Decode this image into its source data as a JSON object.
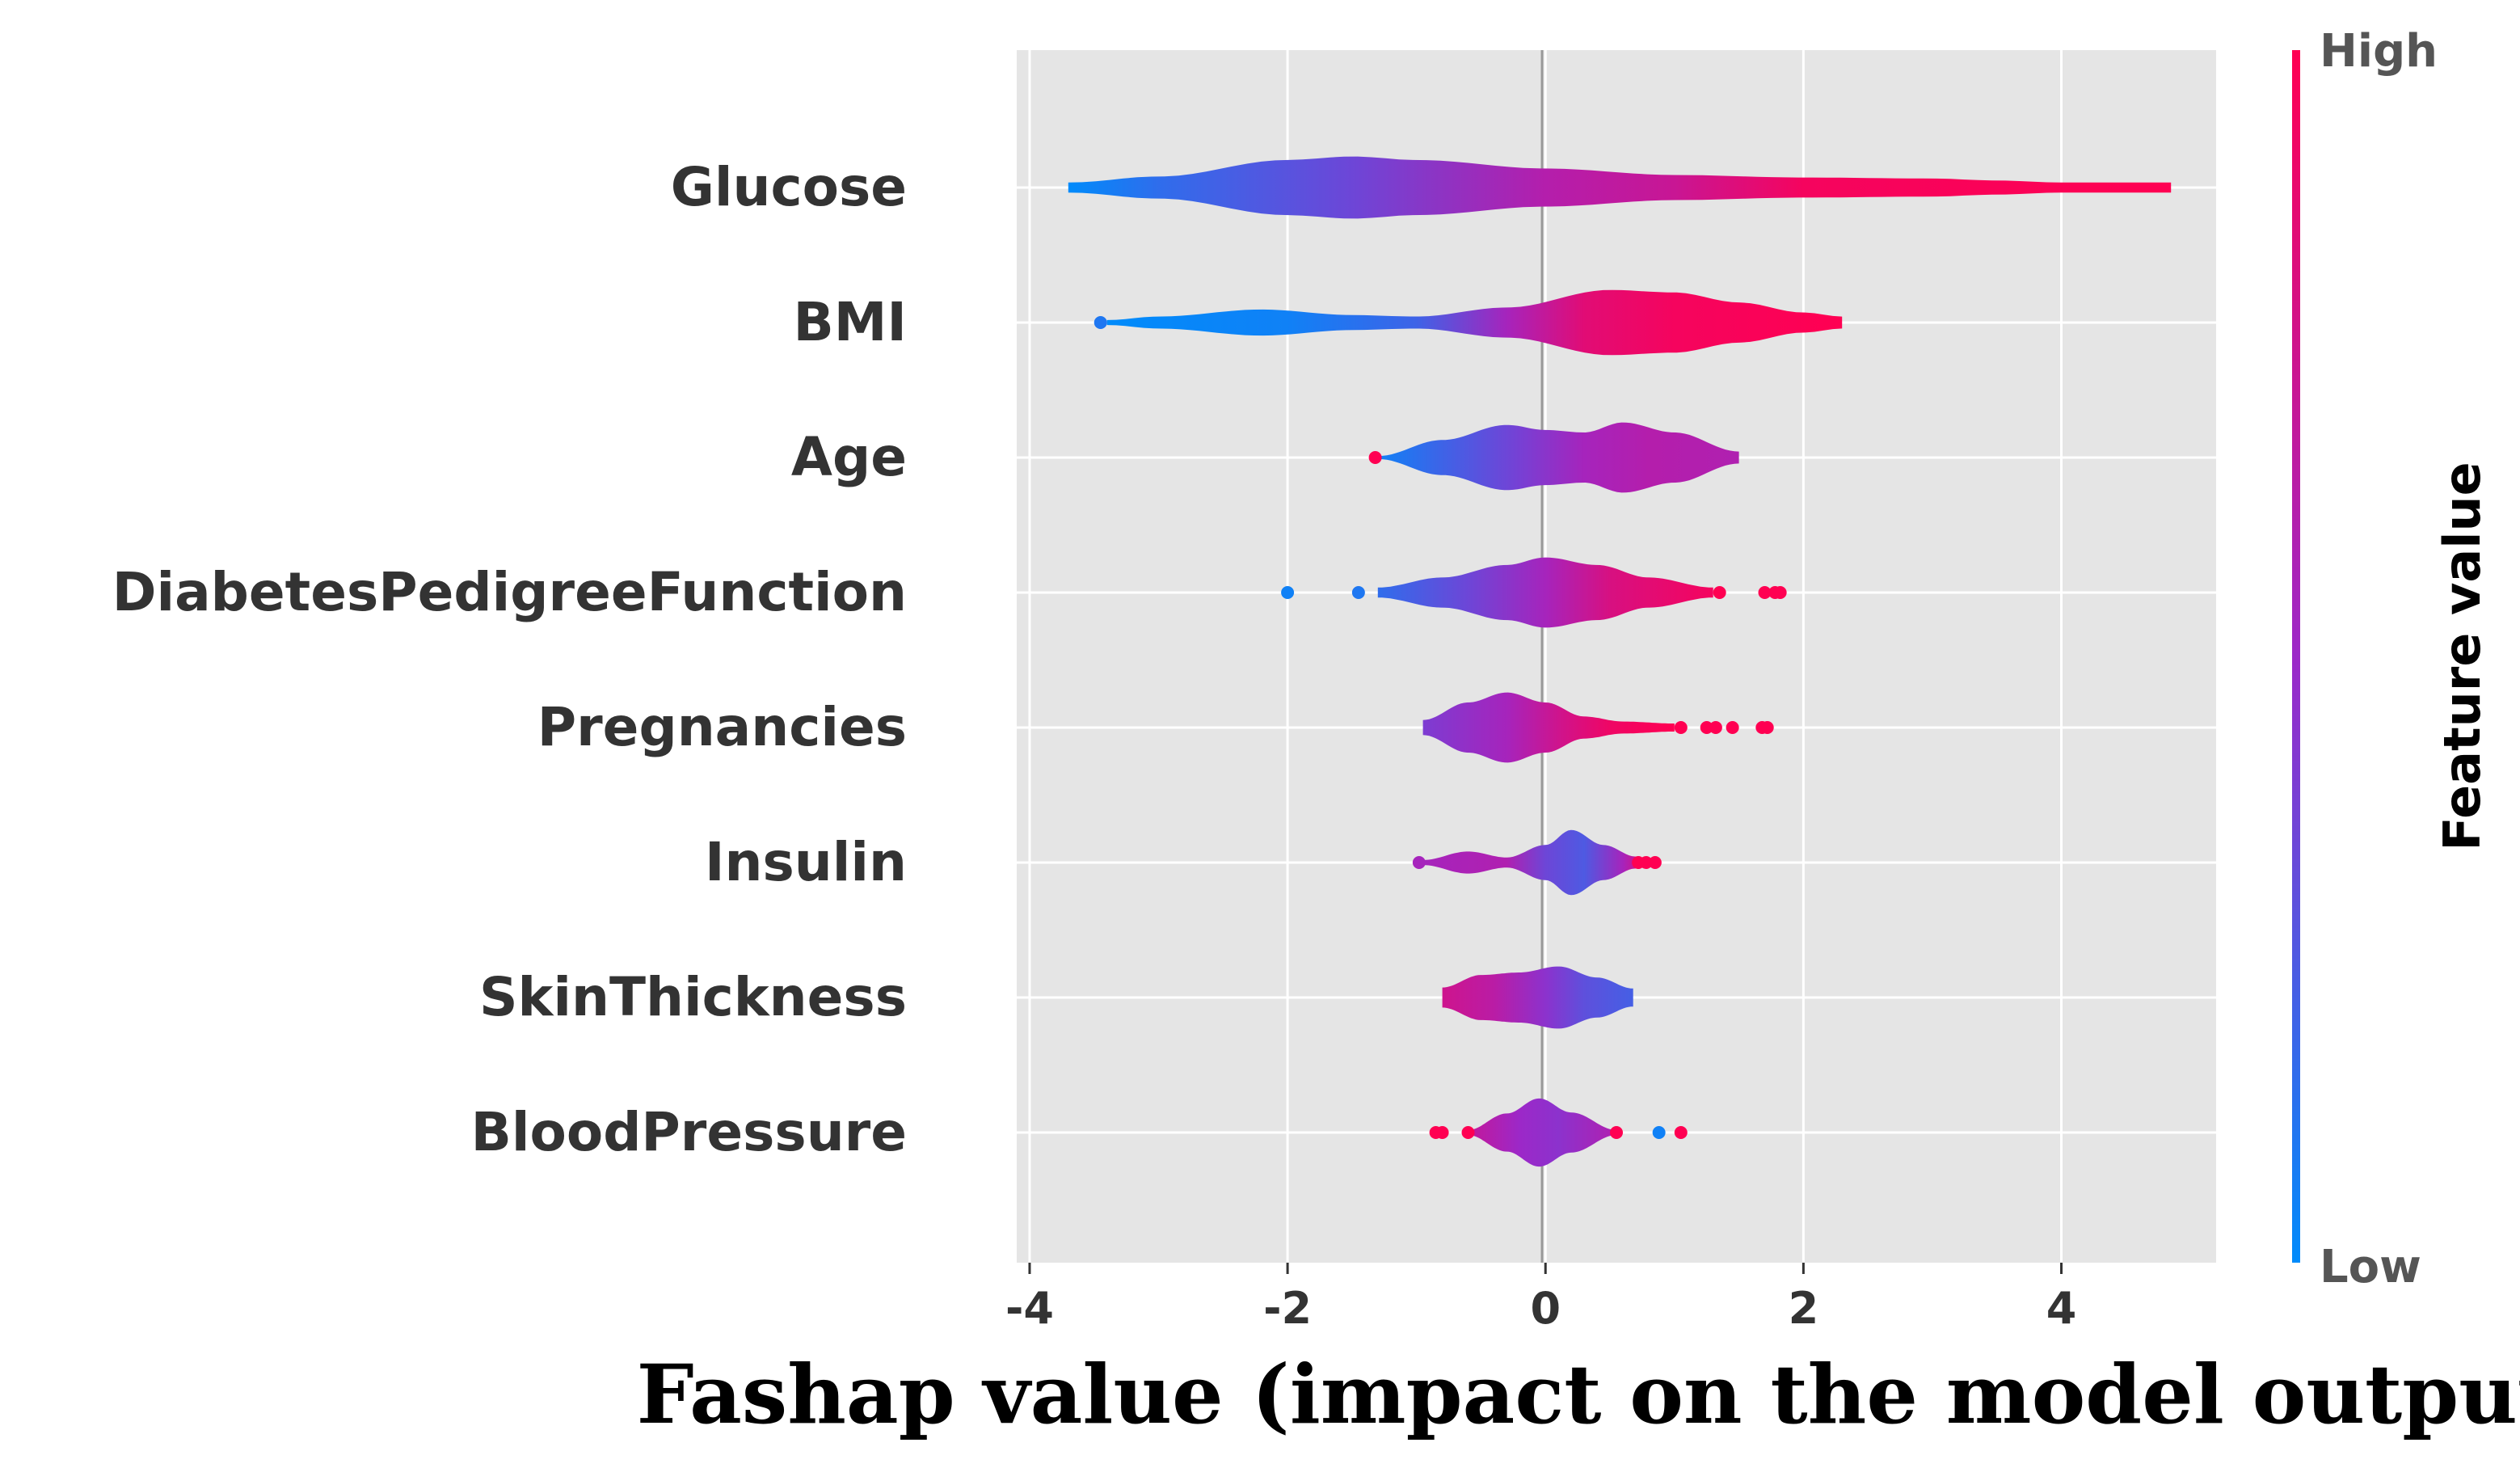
{
  "chart_data": {
    "type": "violin",
    "xlabel": "Fashap value (impact on the model output)",
    "xlim": [
      -4.1,
      5.2
    ],
    "x_ticks": [
      -4,
      -2,
      0,
      2,
      4
    ],
    "x_tick_labels": [
      "-4",
      "-2",
      "0",
      "2",
      "4"
    ],
    "grid": true,
    "colorbar": {
      "title": "Feature value",
      "high_label": "High",
      "low_label": "Low",
      "low_color": "#008bfb",
      "high_color": "#ff0052"
    },
    "features": [
      {
        "name": "Glucose",
        "range": [
          -3.7,
          4.85
        ],
        "density": [
          [
            -3.7,
            0.1
          ],
          [
            -3.0,
            0.22
          ],
          [
            -2.0,
            0.55
          ],
          [
            -1.5,
            0.62
          ],
          [
            -1.0,
            0.55
          ],
          [
            0.0,
            0.38
          ],
          [
            1.0,
            0.25
          ],
          [
            2.0,
            0.2
          ],
          [
            3.0,
            0.18
          ],
          [
            3.5,
            0.14
          ],
          [
            4.0,
            0.1
          ],
          [
            4.85,
            0.1
          ]
        ],
        "color_stops": [
          [
            -3.7,
            0.0
          ],
          [
            -3.0,
            0.15
          ],
          [
            -1.5,
            0.35
          ],
          [
            0.0,
            0.62
          ],
          [
            1.0,
            0.72
          ],
          [
            2.0,
            0.95
          ],
          [
            4.85,
            1.0
          ]
        ],
        "outliers": []
      },
      {
        "name": "BMI",
        "range": [
          -3.4,
          2.3
        ],
        "density": [
          [
            -3.4,
            0.05
          ],
          [
            -3.0,
            0.12
          ],
          [
            -2.2,
            0.26
          ],
          [
            -1.5,
            0.15
          ],
          [
            -1.0,
            0.12
          ],
          [
            -0.3,
            0.3
          ],
          [
            0.5,
            0.65
          ],
          [
            1.0,
            0.6
          ],
          [
            1.5,
            0.4
          ],
          [
            2.0,
            0.2
          ],
          [
            2.3,
            0.12
          ]
        ],
        "color_stops": [
          [
            -3.4,
            0.0
          ],
          [
            -2.0,
            0.05
          ],
          [
            -1.0,
            0.2
          ],
          [
            -0.3,
            0.55
          ],
          [
            0.3,
            0.85
          ],
          [
            1.0,
            0.95
          ],
          [
            2.3,
            1.0
          ]
        ],
        "outliers": [
          {
            "x": -3.45,
            "c": 0.1
          }
        ]
      },
      {
        "name": "Age",
        "range": [
          -1.3,
          1.5
        ],
        "density": [
          [
            -1.3,
            0.03
          ],
          [
            -0.8,
            0.35
          ],
          [
            -0.3,
            0.65
          ],
          [
            0.0,
            0.55
          ],
          [
            0.3,
            0.5
          ],
          [
            0.6,
            0.7
          ],
          [
            1.0,
            0.5
          ],
          [
            1.5,
            0.12
          ]
        ],
        "color_stops": [
          [
            -1.3,
            0.05
          ],
          [
            -0.8,
            0.2
          ],
          [
            -0.2,
            0.38
          ],
          [
            0.3,
            0.55
          ],
          [
            0.8,
            0.62
          ],
          [
            1.5,
            0.6
          ]
        ],
        "outliers": [
          {
            "x": -1.32,
            "c": 1.0
          }
        ]
      },
      {
        "name": "DiabetesPedigreeFunction",
        "range": [
          -1.3,
          1.3
        ],
        "density": [
          [
            -1.3,
            0.1
          ],
          [
            -0.8,
            0.3
          ],
          [
            -0.3,
            0.55
          ],
          [
            0.0,
            0.7
          ],
          [
            0.4,
            0.55
          ],
          [
            0.8,
            0.3
          ],
          [
            1.3,
            0.1
          ]
        ],
        "color_stops": [
          [
            -1.3,
            0.15
          ],
          [
            -0.6,
            0.35
          ],
          [
            0.0,
            0.55
          ],
          [
            0.5,
            0.8
          ],
          [
            1.3,
            0.95
          ]
        ],
        "outliers": [
          {
            "x": -2.0,
            "c": 0.05
          },
          {
            "x": -1.45,
            "c": 0.1
          },
          {
            "x": 1.35,
            "c": 1.0
          },
          {
            "x": 1.7,
            "c": 1.0
          },
          {
            "x": 1.78,
            "c": 1.0
          },
          {
            "x": 1.82,
            "c": 1.0
          }
        ]
      },
      {
        "name": "Pregnancies",
        "range": [
          -0.95,
          1.0
        ],
        "density": [
          [
            -0.95,
            0.15
          ],
          [
            -0.6,
            0.5
          ],
          [
            -0.3,
            0.7
          ],
          [
            0.0,
            0.5
          ],
          [
            0.3,
            0.22
          ],
          [
            0.6,
            0.12
          ],
          [
            1.0,
            0.08
          ]
        ],
        "color_stops": [
          [
            -0.95,
            0.4
          ],
          [
            -0.3,
            0.55
          ],
          [
            0.1,
            0.75
          ],
          [
            0.5,
            0.92
          ],
          [
            1.0,
            1.0
          ]
        ],
        "outliers": [
          {
            "x": 1.05,
            "c": 1.0
          },
          {
            "x": 1.25,
            "c": 1.0
          },
          {
            "x": 1.32,
            "c": 1.0
          },
          {
            "x": 1.45,
            "c": 1.0
          },
          {
            "x": 1.68,
            "c": 1.0
          },
          {
            "x": 1.72,
            "c": 1.0
          }
        ]
      },
      {
        "name": "Insulin",
        "range": [
          -0.95,
          0.85
        ],
        "density": [
          [
            -0.95,
            0.05
          ],
          [
            -0.6,
            0.22
          ],
          [
            -0.3,
            0.1
          ],
          [
            0.0,
            0.35
          ],
          [
            0.2,
            0.65
          ],
          [
            0.45,
            0.35
          ],
          [
            0.7,
            0.12
          ],
          [
            0.85,
            0.05
          ]
        ],
        "color_stops": [
          [
            -0.95,
            0.55
          ],
          [
            -0.3,
            0.6
          ],
          [
            0.0,
            0.35
          ],
          [
            0.3,
            0.25
          ],
          [
            0.6,
            0.55
          ],
          [
            0.85,
            1.0
          ]
        ],
        "outliers": [
          {
            "x": -0.98,
            "c": 0.55
          },
          {
            "x": 0.72,
            "c": 1.0
          },
          {
            "x": 0.78,
            "c": 1.0
          },
          {
            "x": 0.85,
            "c": 1.0
          }
        ]
      },
      {
        "name": "SkinThickness",
        "range": [
          -0.8,
          0.68
        ],
        "density": [
          [
            -0.8,
            0.2
          ],
          [
            -0.5,
            0.45
          ],
          [
            -0.2,
            0.5
          ],
          [
            0.1,
            0.62
          ],
          [
            0.4,
            0.4
          ],
          [
            0.68,
            0.18
          ]
        ],
        "color_stops": [
          [
            -0.8,
            0.75
          ],
          [
            -0.4,
            0.65
          ],
          [
            0.0,
            0.45
          ],
          [
            0.3,
            0.3
          ],
          [
            0.68,
            0.22
          ]
        ],
        "outliers": []
      },
      {
        "name": "BloodPressure",
        "range": [
          -0.6,
          0.55
        ],
        "density": [
          [
            -0.6,
            0.05
          ],
          [
            -0.3,
            0.38
          ],
          [
            -0.05,
            0.68
          ],
          [
            0.2,
            0.4
          ],
          [
            0.55,
            0.05
          ]
        ],
        "color_stops": [
          [
            -0.6,
            0.7
          ],
          [
            -0.2,
            0.5
          ],
          [
            0.1,
            0.45
          ],
          [
            0.55,
            0.6
          ]
        ],
        "outliers": [
          {
            "x": -0.85,
            "c": 1.0
          },
          {
            "x": -0.8,
            "c": 1.0
          },
          {
            "x": -0.6,
            "c": 1.0
          },
          {
            "x": 0.55,
            "c": 1.0
          },
          {
            "x": 0.88,
            "c": 0.05
          },
          {
            "x": 1.05,
            "c": 1.0
          }
        ]
      }
    ]
  }
}
